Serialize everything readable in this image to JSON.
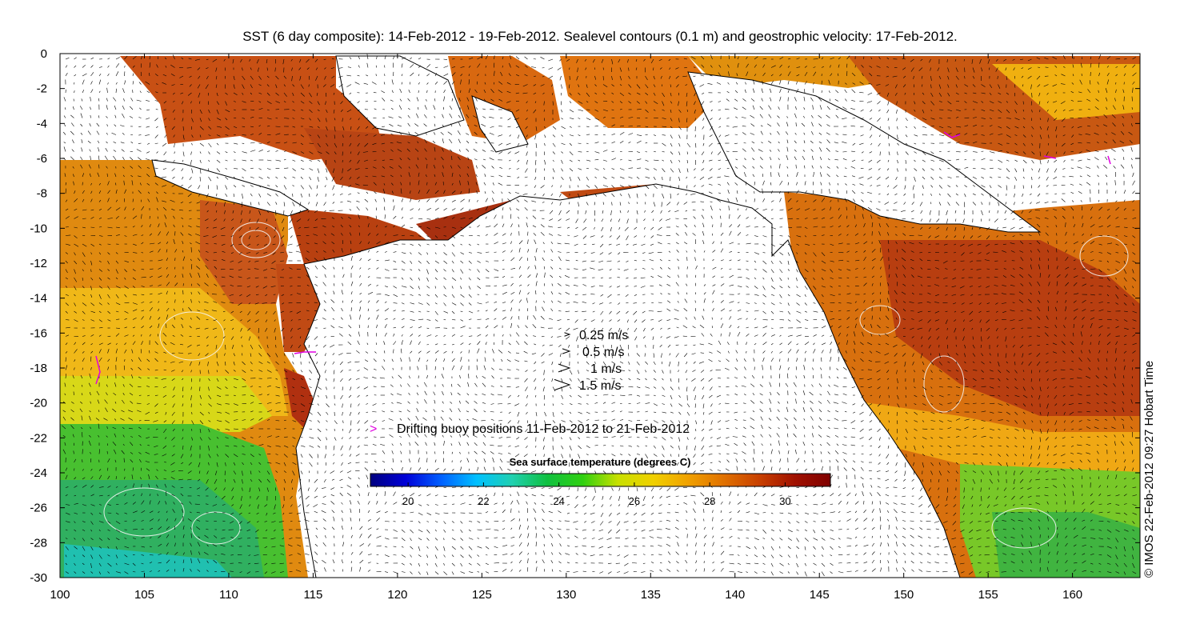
{
  "title": "SST (6 day composite): 14-Feb-2012 - 19-Feb-2012. Sealevel contours (0.1 m) and geostrophic velocity: 17-Feb-2012.",
  "axes": {
    "x_ticks": [
      "100",
      "105",
      "110",
      "115",
      "120",
      "125",
      "130",
      "135",
      "140",
      "145",
      "150",
      "155",
      "160"
    ],
    "y_ticks": [
      "0",
      "-2",
      "-4",
      "-6",
      "-8",
      "-10",
      "-12",
      "-14",
      "-16",
      "-18",
      "-20",
      "-22",
      "-24",
      "-26",
      "-28",
      "-30"
    ],
    "lon_range": [
      100,
      164
    ],
    "lat_range": [
      -30,
      0
    ]
  },
  "velocity_legend": [
    {
      "label": "0.25 m/s",
      "speed": 0.25
    },
    {
      "label": "0.5 m/s",
      "speed": 0.5
    },
    {
      "label": "1 m/s",
      "speed": 1
    },
    {
      "label": "1.5 m/s",
      "speed": 1.5
    }
  ],
  "buoy_legend": {
    "label": "Drifting buoy positions 11-Feb-2012 to 21-Feb-2012",
    "marker": ">",
    "color": "#e000e0"
  },
  "colorbar": {
    "title": "Sea surface temperature (degrees C)",
    "ticks": [
      "20",
      "22",
      "24",
      "26",
      "28",
      "30"
    ],
    "range": [
      19,
      31.2
    ],
    "colors": [
      "#00007f",
      "#0000d8",
      "#0060ff",
      "#00c0ff",
      "#20d0b0",
      "#10c040",
      "#30d010",
      "#c8e000",
      "#f0d000",
      "#f0a000",
      "#e07000",
      "#c84000",
      "#a01000",
      "#800000"
    ]
  },
  "credit": "© IMOS 22-Feb-2012 09:27 Hobart Time"
}
